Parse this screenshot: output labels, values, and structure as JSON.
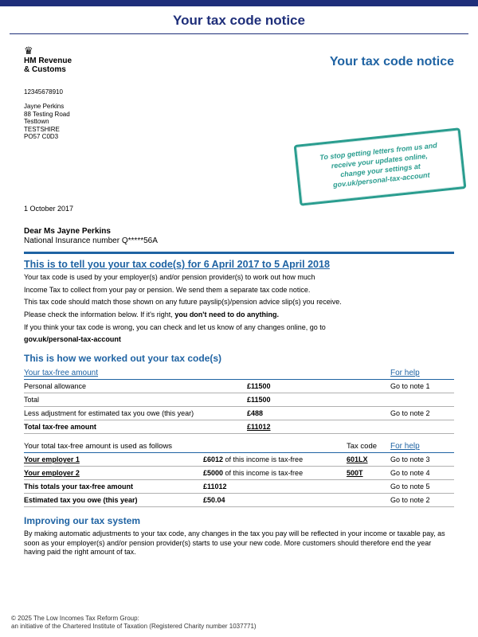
{
  "colors": {
    "brand_bar": "#1f2f7a",
    "heading_blue": "#1f63a3",
    "stamp_teal": "#2a9d8f",
    "rule_gray": "#b0b0b0"
  },
  "page_title": "Your tax code notice",
  "hmrc": {
    "name_line1": "HM Revenue",
    "name_line2": "& Customs"
  },
  "doc_title": "Your tax code notice",
  "reference": "12345678910",
  "address": {
    "name": "Jayne Perkins",
    "line1": "88 Testing Road",
    "line2": "Testtown",
    "line3": "TESTSHIRE",
    "postcode": "PO57 C0D3"
  },
  "stamp": {
    "line1": "To stop getting letters from us and",
    "line2": "receive your updates online,",
    "line3": "change your settings at",
    "link": "gov.uk/personal-tax-account"
  },
  "date": "1 October 2017",
  "salutation": "Dear Ms Jayne Perkins",
  "ni_label": "National Insurance number ",
  "ni_number": "Q*****56A",
  "headline": "This is to tell you your tax code(s) for 6 April 2017 to 5 April 2018",
  "para1": "Your tax code is used by your employer(s) and/or pension provider(s) to work out how much",
  "para2": "Income Tax to collect from your pay or pension. We send them a separate tax code notice.",
  "para3": "This tax code should match those shown on any future payslip(s)/pension advice slip(s) you receive.",
  "para4a": "Please check the information below. If it's right, ",
  "para4b": "you don't need to do anything.",
  "para5": "If you think your tax code is wrong, you can check and let us know of any changes online, go to",
  "para5_link": "gov.uk/personal-tax-account",
  "worked_out_heading": "This is how we worked out your tax code(s)",
  "cap_taxfree": "Your tax-free amount",
  "cap_forhelp": "For help",
  "rows1": [
    {
      "label": "Personal allowance",
      "amount": "£11500",
      "note": "Go to note 1"
    },
    {
      "label": "Total",
      "amount": "£11500",
      "note": ""
    },
    {
      "label": "Less adjustment for estimated tax you owe (this year)",
      "amount": "£488",
      "note": "Go to note 2"
    }
  ],
  "total1": {
    "label": "Total tax-free amount",
    "amount": "£11012"
  },
  "split_caption": {
    "left": "Your total tax-free amount is used as follows",
    "mid": "Tax code",
    "right": "For help"
  },
  "rows2": [
    {
      "label": "Your employer 1",
      "amount": "£6012",
      "amount_suffix": " of this income is tax-free",
      "code": "601LX",
      "note": "Go to note 3",
      "underline_label": true
    },
    {
      "label": "Your employer 2",
      "amount": "£5000",
      "amount_suffix": " of this income is tax-free",
      "code": "500T",
      "note": "Go to note 4",
      "underline_label": true
    },
    {
      "label": "This totals your tax-free amount",
      "amount": "£11012",
      "amount_suffix": "",
      "code": "",
      "note": "Go to note 5",
      "bold": true
    },
    {
      "label": "Estimated tax you owe (this year)",
      "amount": "£50.04",
      "amount_suffix": "",
      "code": "",
      "note": "Go to note 2",
      "bold": true
    }
  ],
  "improving_heading": "Improving our tax system",
  "improving_body": "By making automatic adjustments to your tax code, any changes in the tax you pay will be reflected in your income or taxable pay, as soon as your employer(s) and/or pension provider(s) starts to use your new code. More customers should therefore end the year having paid the right amount of tax.",
  "footer_line1": "© 2025 The Low Incomes Tax Reform Group:",
  "footer_line2": "an initiative of the Chartered Institute of Taxation (Registered Charity number 1037771)"
}
